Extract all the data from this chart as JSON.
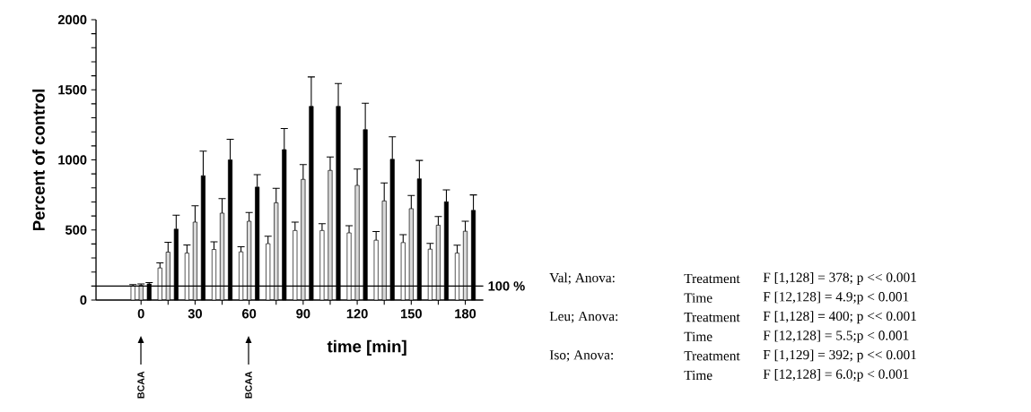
{
  "chart_data": {
    "type": "bar",
    "xlabel": "time [min]",
    "ylabel": "Percent of control",
    "x": [
      0,
      15,
      30,
      45,
      60,
      75,
      90,
      105,
      120,
      135,
      150,
      165,
      180
    ],
    "series": [
      {
        "color": "#ffffff",
        "values": [
          100,
          229,
          335,
          361,
          344,
          402,
          496,
          496,
          479,
          427,
          410,
          363,
          335
        ],
        "errors": [
          [
            100,
            110
          ],
          [
            229,
            265
          ],
          [
            335,
            393
          ],
          [
            361,
            415
          ],
          [
            344,
            380
          ],
          [
            402,
            455
          ],
          [
            496,
            556
          ],
          [
            496,
            545
          ],
          [
            479,
            530
          ],
          [
            427,
            489
          ],
          [
            410,
            466
          ],
          [
            363,
            404
          ],
          [
            335,
            391
          ]
        ]
      },
      {
        "color": "#d9d9d9",
        "values": [
          105,
          342,
          556,
          620,
          562,
          694,
          861,
          925,
          818,
          707,
          652,
          534,
          491
        ],
        "errors": [
          [
            105,
            115
          ],
          [
            342,
            412
          ],
          [
            556,
            673
          ],
          [
            620,
            724
          ],
          [
            562,
            624
          ],
          [
            694,
            797
          ],
          [
            861,
            966
          ],
          [
            925,
            1021
          ],
          [
            818,
            934
          ],
          [
            707,
            835
          ],
          [
            652,
            746
          ],
          [
            534,
            596
          ],
          [
            491,
            562
          ]
        ]
      },
      {
        "color": "#000000",
        "values": [
          115,
          506,
          887,
          1000,
          806,
          1073,
          1382,
          1382,
          1216,
          1004,
          865,
          701,
          640
        ],
        "errors": [
          [
            115,
            125
          ],
          [
            506,
            605
          ],
          [
            887,
            1062
          ],
          [
            1000,
            1147
          ],
          [
            806,
            895
          ],
          [
            1073,
            1224
          ],
          [
            1382,
            1592
          ],
          [
            1382,
            1545
          ],
          [
            1216,
            1404
          ],
          [
            1004,
            1165
          ],
          [
            865,
            996
          ],
          [
            701,
            786
          ],
          [
            640,
            750
          ]
        ]
      }
    ],
    "xlim": [
      -25,
      190
    ],
    "ylim": [
      0,
      2000
    ],
    "xticks": [
      0,
      {
        "value": 15,
        "label": null
      },
      30,
      {
        "value": 45,
        "label": null
      },
      60,
      {
        "value": 75,
        "label": null
      },
      90,
      {
        "value": 105,
        "label": null
      },
      120,
      {
        "value": 135,
        "label": null
      },
      150,
      {
        "value": 165,
        "label": null
      },
      180
    ],
    "yticks": [
      0,
      {
        "value": 100,
        "label": null
      },
      {
        "value": 200,
        "label": null
      },
      {
        "value": 300,
        "label": null
      },
      {
        "value": 400,
        "label": null
      },
      500,
      {
        "value": 600,
        "label": null
      },
      {
        "value": 700,
        "label": null
      },
      {
        "value": 800,
        "label": null
      },
      {
        "value": 900,
        "label": null
      },
      1000,
      {
        "value": 1100,
        "label": null
      },
      {
        "value": 1200,
        "label": null
      },
      {
        "value": 1300,
        "label": null
      },
      {
        "value": 1400,
        "label": null
      },
      1500,
      {
        "value": 1600,
        "label": null
      },
      {
        "value": 1700,
        "label": null
      },
      {
        "value": 1800,
        "label": null
      },
      {
        "value": 1900,
        "label": null
      },
      2000
    ],
    "ref_lines": [
      {
        "axis": "y",
        "value": 100,
        "label": "100 %"
      }
    ],
    "annotations": [
      "BCAA",
      "BCAA",
      "Val; Anova:",
      "Treatment",
      "F [1,128] = 378; p << 0.001",
      "Time",
      "F [12,128] = 4.9;p < 0.001",
      "Leu; Anova:",
      "Treatment",
      "F [1,128] = 400; p << 0.001",
      "Time",
      "F [12,128] = 5.5;p < 0.001",
      "Iso; Anova:",
      "Treatment",
      "F [1,129] = 392; p << 0.001",
      "Time",
      "F [12,128] = 6.0;p < 0.001"
    ]
  }
}
